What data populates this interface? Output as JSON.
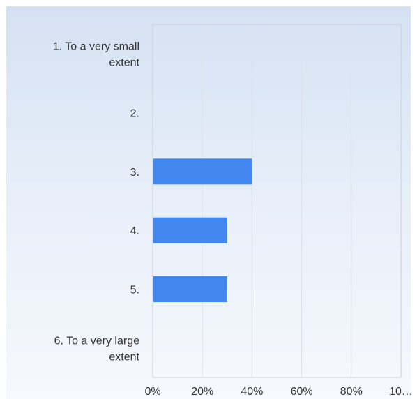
{
  "chart_data": {
    "type": "bar",
    "orientation": "horizontal",
    "categories": [
      [
        "1. To a very small",
        "extent"
      ],
      [
        "2."
      ],
      [
        "3."
      ],
      [
        "4."
      ],
      [
        "5."
      ],
      [
        "6. To a very large",
        "extent"
      ]
    ],
    "values": [
      0,
      0,
      40,
      30,
      30,
      0
    ],
    "xlim": [
      0,
      100
    ],
    "ticks": [
      "0%",
      "20%",
      "40%",
      "60%",
      "80%",
      "10…"
    ],
    "grid": true,
    "bar_color": "#4287f0",
    "title": "",
    "xlabel": "",
    "ylabel": ""
  }
}
